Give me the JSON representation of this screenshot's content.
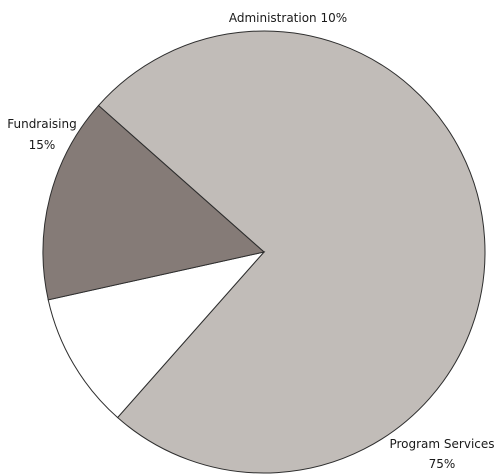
{
  "chart_data": {
    "type": "pie",
    "title": "",
    "slices": [
      {
        "name": "Program Services",
        "value": 75,
        "value_label": "75%",
        "color": "#c1bcb8"
      },
      {
        "name": "Administration",
        "value": 10,
        "value_label": "10%",
        "color": "#ffffff"
      },
      {
        "name": "Fundraising",
        "value": 15,
        "value_label": "15%",
        "color": "#857b77"
      }
    ],
    "start_angle_deg": -48.5,
    "direction": "clockwise",
    "stroke_color": "#2e2e2e",
    "legend": "none"
  }
}
